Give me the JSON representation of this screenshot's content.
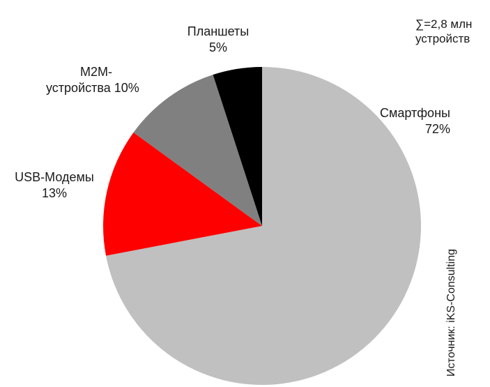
{
  "chart_data": {
    "type": "pie",
    "title": "",
    "slices": [
      {
        "name": "Смартфоны",
        "value": 72,
        "value_label": "72%",
        "color": "#c0c0c0"
      },
      {
        "name": "USB-Модемы",
        "value": 13,
        "value_label": "13%",
        "color": "#ff0000"
      },
      {
        "name": "M2M-устройства",
        "value": 10,
        "value_label": "10%",
        "color": "#808080"
      },
      {
        "name": "Планшеты",
        "value": 5,
        "value_label": "5%",
        "color": "#000000"
      }
    ],
    "annotations": {
      "total_line1": "∑=2,8 млн",
      "total_line2": "устройств",
      "source": "Источник: iKS-Consulting"
    },
    "start": "12 o'clock",
    "direction": "clockwise",
    "legend": "none"
  },
  "labels": {
    "tablets_name": "Планшеты",
    "tablets_value": "5%",
    "m2m_name_line1": "M2M-",
    "m2m_name_line2": "устройства 10%",
    "usb_name": "USB-Модемы",
    "usb_value": "13%",
    "smartphones_name": "Смартфоны",
    "smartphones_value": "72%"
  }
}
